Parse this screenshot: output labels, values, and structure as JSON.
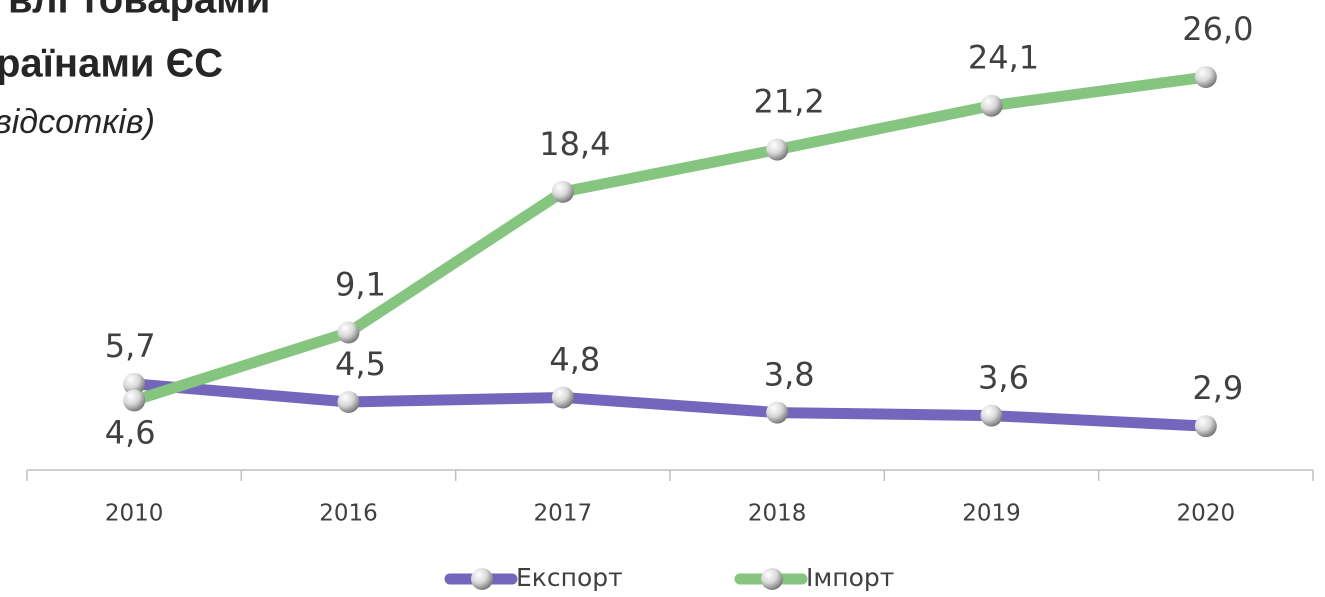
{
  "chart_data": {
    "type": "line",
    "title_lines": [
      "влі товарами",
      "раїнами ЄС",
      "відсотків)"
    ],
    "categories": [
      "2010",
      "2016",
      "2017",
      "2018",
      "2019",
      "2020"
    ],
    "series": [
      {
        "name": "Експорт",
        "color": "#7466bd",
        "values": [
          5.7,
          4.5,
          4.8,
          3.8,
          3.6,
          2.9
        ],
        "value_labels": [
          "5,7",
          "4,5",
          "4,8",
          "3,8",
          "3,6",
          "2,9"
        ]
      },
      {
        "name": "Імпорт",
        "color": "#86c57f",
        "values": [
          4.6,
          9.1,
          18.4,
          21.2,
          24.1,
          26.0
        ],
        "value_labels": [
          "4,6",
          "9,1",
          "18,4",
          "21,2",
          "24,1",
          "26,0"
        ]
      }
    ],
    "ylim": [
      0,
      26.2
    ],
    "legend": "bottom"
  }
}
